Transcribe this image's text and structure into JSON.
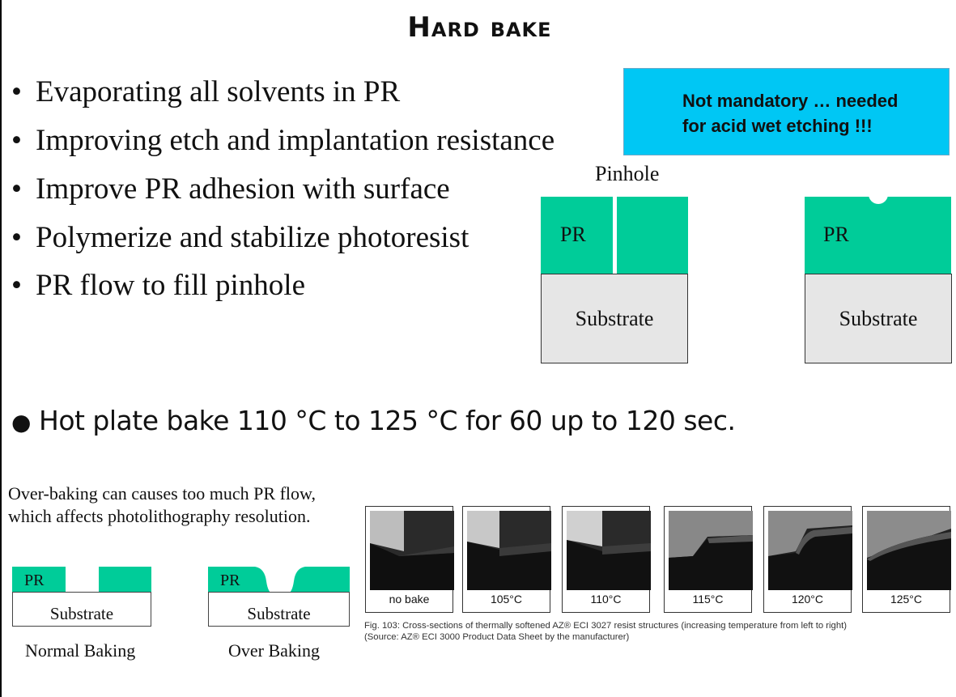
{
  "title": "Hard bake",
  "bullets": [
    "Evaporating all solvents in PR",
    "Improving etch and implantation resistance",
    "Improve PR adhesion with surface",
    "Polymerize and stabilize photoresist",
    "PR flow to fill pinhole"
  ],
  "bullet_symbol": "•",
  "note": {
    "line1": "Not mandatory … needed",
    "line2": "for acid wet etching !!!",
    "color": "#00c7f4"
  },
  "pinhole_diagram": {
    "label": "Pinhole",
    "pr_label": "PR",
    "substrate_label": "Substrate",
    "pr_color": "#00cc99",
    "substrate_color": "#e6e6e6"
  },
  "hot_plate": {
    "bullet": "●",
    "text": "Hot plate bake 110 °C to 125 °C for 60 up to 120 sec."
  },
  "overbaking_text": {
    "line1": "Over-baking can causes too much PR flow,",
    "line2": "which affects photolithography resolution."
  },
  "baking_diagrams": {
    "pr_label": "PR",
    "substrate_label": "Substrate",
    "normal_caption": "Normal Baking",
    "over_caption": "Over Baking"
  },
  "sem_series": {
    "labels": [
      "no bake",
      "105°C",
      "110°C",
      "115°C",
      "120°C",
      "125°C"
    ],
    "caption_line1": "Fig. 103: Cross-sections of thermally softened AZ® ECI 3027 resist structures (increasing temperature from left to right)",
    "caption_line2": "(Source: AZ® ECI 3000 Product Data Sheet by the manufacturer)"
  }
}
